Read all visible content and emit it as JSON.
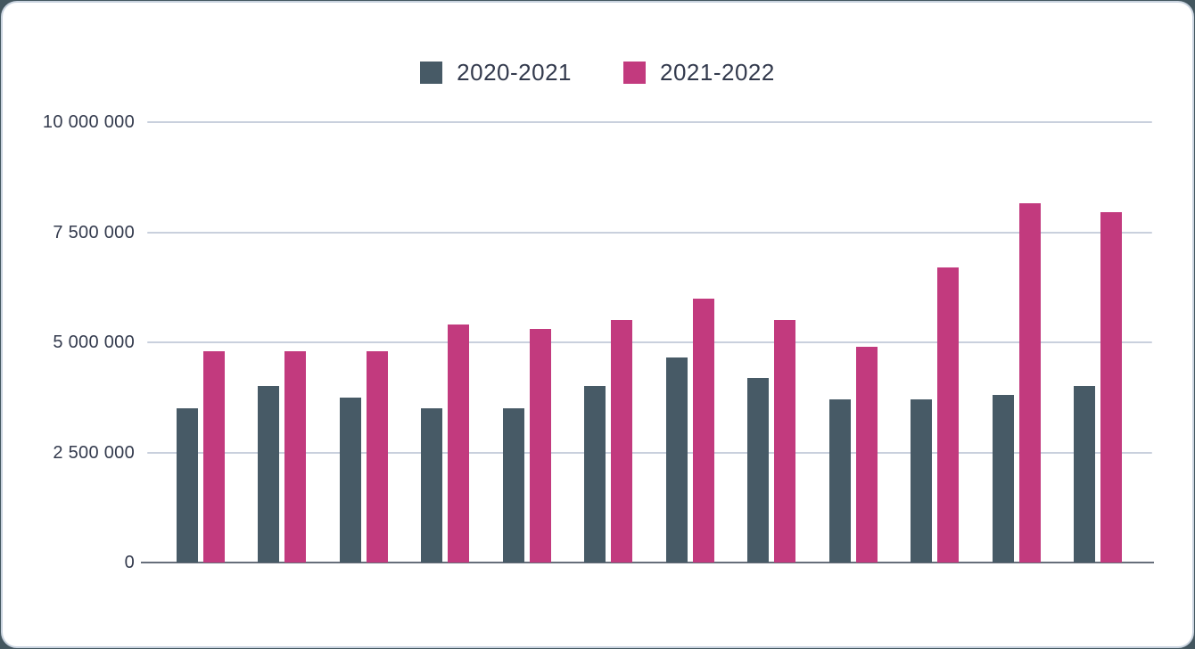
{
  "card": {
    "background": "#ffffff",
    "border_color": "#c9d3df"
  },
  "chart_data": {
    "type": "bar",
    "title": "",
    "xlabel": "",
    "ylabel": "",
    "groups": 12,
    "x_tick_labels_visible": false,
    "series": [
      {
        "name": "2020-2021",
        "color": "#475a66",
        "values": [
          3500000,
          4000000,
          3750000,
          3500000,
          3500000,
          4000000,
          4650000,
          4200000,
          3700000,
          3700000,
          3800000,
          4000000
        ]
      },
      {
        "name": "2021-2022",
        "color": "#c23a7e",
        "values": [
          4800000,
          4800000,
          4800000,
          5400000,
          5300000,
          5500000,
          6000000,
          5500000,
          4900000,
          6700000,
          8150000,
          7950000
        ]
      }
    ],
    "y_ticks": [
      {
        "value": 10000000,
        "label": "10 000 000"
      },
      {
        "value": 7500000,
        "label": "7 500 000"
      },
      {
        "value": 5000000,
        "label": "5 000 000"
      },
      {
        "value": 2500000,
        "label": "2 500 000"
      },
      {
        "value": 0,
        "label": "0"
      }
    ],
    "ylim": [
      0,
      10000000
    ],
    "grid": true,
    "gridline_color": "#c9d0dd",
    "axis_line_color": "#666e7a",
    "label_color": "#333a4d",
    "legend_position": "top"
  }
}
